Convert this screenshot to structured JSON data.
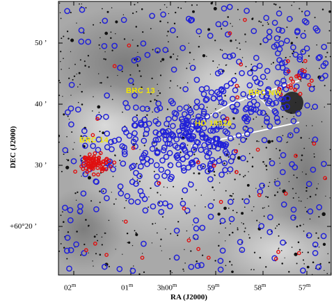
{
  "figure": {
    "axes": {
      "xlabel": "RA (J2000)",
      "ylabel": "DEC (J2000)",
      "xticks": [
        {
          "h": "02",
          "sup": "m"
        },
        {
          "h": "01",
          "sup": "m"
        },
        {
          "h": "3h00",
          "sup": "m"
        },
        {
          "h": "59",
          "sup": "m"
        },
        {
          "h": "58",
          "sup": "m"
        },
        {
          "h": "57",
          "sup": "m"
        }
      ],
      "yticks": [
        {
          "text": "50 ’"
        },
        {
          "text": "40 ’"
        },
        {
          "text": "30 ’"
        },
        {
          "text": "+60°20 ’"
        }
      ]
    },
    "annotations": [
      "BRC 13",
      "BRC NW",
      "HD 18326",
      "BRC 14"
    ],
    "colors": {
      "circle": "#2020d8",
      "red_point": "#e01010",
      "annotation": "#f2e600",
      "line": "#ffffff"
    }
  }
}
